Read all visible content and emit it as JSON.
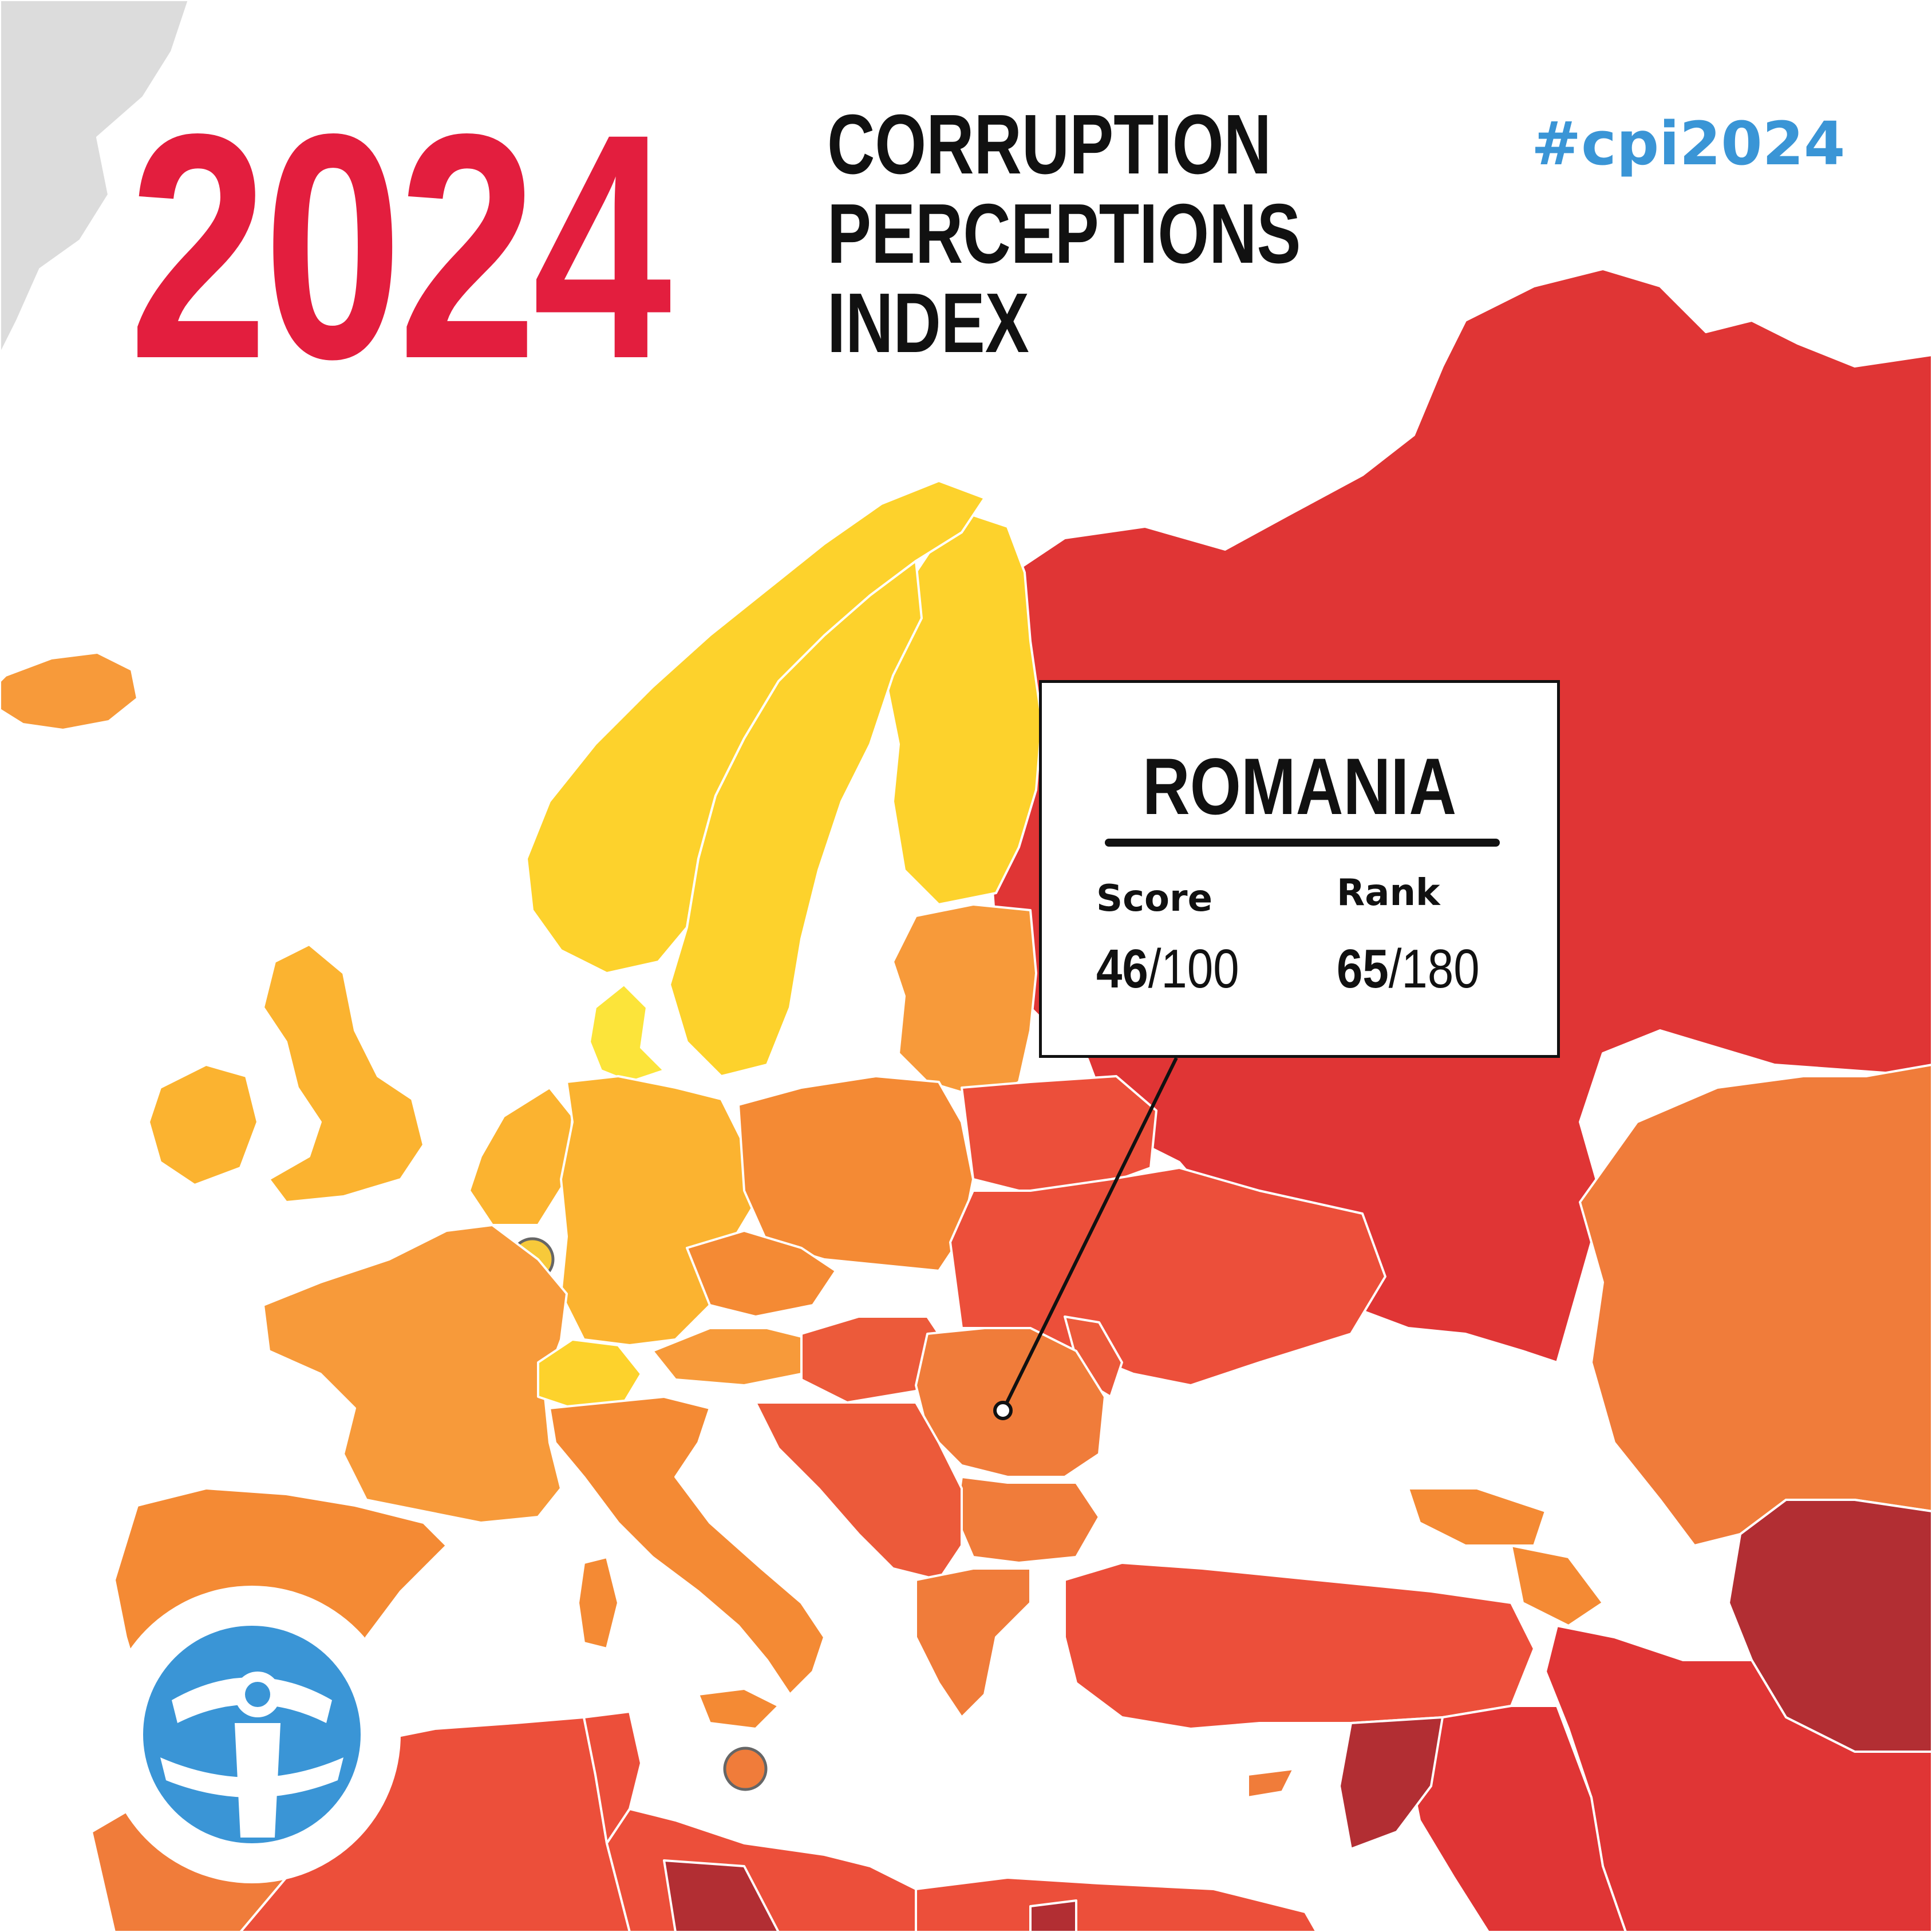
{
  "header": {
    "year": "2024",
    "title_lines": [
      "CORRUPTION",
      "PERCEPTIONS",
      "INDEX"
    ],
    "hashtag": "#cpi2024"
  },
  "tooltip": {
    "country": "ROMANIA",
    "score_label": "Score",
    "score_value": "46",
    "score_max": "/100",
    "rank_label": "Rank",
    "rank_value": "65",
    "rank_max": "/180"
  },
  "colors": {
    "title_red": "#e31e3e",
    "hashtag_blue": "#3a95d6",
    "logo_blue": "#3a95d6",
    "scale_yellow": "#fdd22c",
    "scale_light_orange": "#fbb330",
    "scale_orange": "#f79a3a",
    "scale_deep_orange": "#f07c3a",
    "scale_red_orange": "#ec4f3a",
    "scale_red": "#e03535",
    "scale_dark_red": "#b22e33",
    "no_data_grey": "#dcdcdc"
  },
  "icons": {
    "logo": "transparency-international-logo"
  }
}
